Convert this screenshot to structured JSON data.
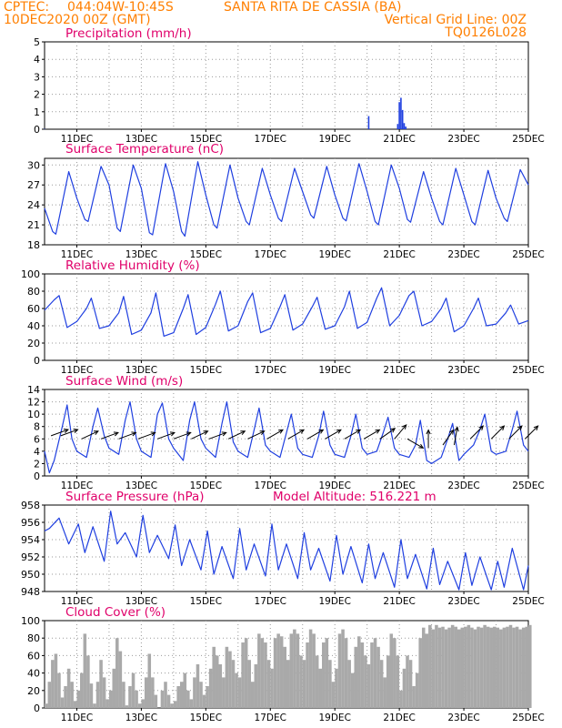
{
  "header": {
    "source": "CPTEC:",
    "coords": "044:04W-10:45S",
    "location": "SANTA RITA DE CASSIA (BA)",
    "datetime": "10DEC2020 00Z (GMT)",
    "grid_note": "Vertical Grid Line: 00Z",
    "model_id": "TQ0126L028"
  },
  "colors": {
    "header": "#ff7f00",
    "panel_title": "#e0006a",
    "line": "#1f3fe0",
    "bar": "#1f3fe0",
    "cloud": "#a9a9a9",
    "grid": "#9a9a9a",
    "arrow": "#000000"
  },
  "chart_data": [
    {
      "type": "bar",
      "title": "Precipitation (mm/h)",
      "x_ticks": [
        "11DEC",
        "13DEC",
        "15DEC",
        "17DEC",
        "19DEC",
        "21DEC",
        "23DEC",
        "25DEC"
      ],
      "y_ticks": [
        "0",
        "1",
        "2",
        "3",
        "4",
        "5"
      ],
      "ylim": [
        0,
        5
      ],
      "grid": true,
      "x": [
        10.0,
        20.05,
        20.95,
        21.0,
        21.05,
        21.1,
        21.15,
        21.2
      ],
      "values": [
        0.02,
        0.75,
        0.3,
        1.55,
        1.8,
        1.1,
        0.35,
        0.15
      ]
    },
    {
      "type": "line",
      "title": "Surface Temperature (nC)",
      "x_ticks": [
        "11DEC",
        "13DEC",
        "15DEC",
        "17DEC",
        "19DEC",
        "21DEC",
        "23DEC",
        "25DEC"
      ],
      "y_ticks": [
        "18",
        "21",
        "24",
        "27",
        "30"
      ],
      "ylim": [
        18,
        31
      ],
      "grid": true,
      "x": [
        10.0,
        10.25,
        10.35,
        10.75,
        11.0,
        11.25,
        11.35,
        11.75,
        12.0,
        12.25,
        12.35,
        12.75,
        13.0,
        13.25,
        13.35,
        13.75,
        14.0,
        14.25,
        14.35,
        14.75,
        15.0,
        15.25,
        15.35,
        15.75,
        16.0,
        16.25,
        16.35,
        16.75,
        17.0,
        17.25,
        17.35,
        17.75,
        18.0,
        18.25,
        18.35,
        18.75,
        19.0,
        19.25,
        19.35,
        19.75,
        20.0,
        20.25,
        20.35,
        20.75,
        21.0,
        21.25,
        21.35,
        21.75,
        22.0,
        22.25,
        22.35,
        22.75,
        23.0,
        23.25,
        23.35,
        23.75,
        24.0,
        24.25,
        24.35,
        24.75,
        25.0
      ],
      "values": [
        23.5,
        20.0,
        19.6,
        29.0,
        25.0,
        21.8,
        21.5,
        29.8,
        27.0,
        20.5,
        20.0,
        30.0,
        26.5,
        19.8,
        19.5,
        30.2,
        26.0,
        20.0,
        19.3,
        30.5,
        25.5,
        21.0,
        20.5,
        30.0,
        25.0,
        21.5,
        21.0,
        29.5,
        25.5,
        22.0,
        21.5,
        29.5,
        26.0,
        22.5,
        22.0,
        29.8,
        25.5,
        22.0,
        21.6,
        30.2,
        26.0,
        21.5,
        21.0,
        30.0,
        26.5,
        21.8,
        21.4,
        29.0,
        25.0,
        21.5,
        21.0,
        29.5,
        25.5,
        21.5,
        21.0,
        29.2,
        25.0,
        22.0,
        21.5,
        29.3,
        27.0
      ]
    },
    {
      "type": "line",
      "title": "Relative Humidity (%)",
      "x_ticks": [
        "11DEC",
        "13DEC",
        "15DEC",
        "17DEC",
        "19DEC",
        "21DEC",
        "23DEC",
        "25DEC"
      ],
      "y_ticks": [
        "0",
        "20",
        "40",
        "60",
        "80",
        "100"
      ],
      "ylim": [
        0,
        100
      ],
      "grid": true,
      "x": [
        10.0,
        10.3,
        10.45,
        10.7,
        11.0,
        11.3,
        11.45,
        11.7,
        12.0,
        12.3,
        12.45,
        12.7,
        13.0,
        13.3,
        13.45,
        13.7,
        14.0,
        14.3,
        14.45,
        14.7,
        15.0,
        15.3,
        15.45,
        15.7,
        16.0,
        16.3,
        16.45,
        16.7,
        17.0,
        17.3,
        17.45,
        17.7,
        18.0,
        18.3,
        18.45,
        18.7,
        19.0,
        19.3,
        19.45,
        19.7,
        20.0,
        20.3,
        20.45,
        20.7,
        21.0,
        21.3,
        21.45,
        21.7,
        22.0,
        22.3,
        22.45,
        22.7,
        23.0,
        23.3,
        23.45,
        23.7,
        24.0,
        24.3,
        24.45,
        24.7,
        25.0
      ],
      "values": [
        58,
        70,
        75,
        38,
        45,
        60,
        72,
        37,
        40,
        55,
        74,
        30,
        35,
        55,
        78,
        28,
        32,
        60,
        76,
        30,
        38,
        65,
        80,
        34,
        40,
        68,
        78,
        32,
        37,
        62,
        76,
        35,
        42,
        62,
        73,
        36,
        40,
        62,
        80,
        37,
        44,
        72,
        84,
        40,
        52,
        75,
        80,
        40,
        45,
        60,
        72,
        33,
        40,
        60,
        72,
        40,
        42,
        55,
        64,
        42,
        46
      ]
    },
    {
      "type": "line",
      "title": "Surface Wind (m/s)",
      "x_ticks": [
        "11DEC",
        "13DEC",
        "15DEC",
        "17DEC",
        "19DEC",
        "21DEC",
        "23DEC",
        "25DEC"
      ],
      "y_ticks": [
        "0",
        "2",
        "4",
        "6",
        "8",
        "10",
        "12",
        "14"
      ],
      "ylim": [
        0,
        14
      ],
      "grid": true,
      "x": [
        10.0,
        10.15,
        10.3,
        10.55,
        10.7,
        10.85,
        11.0,
        11.3,
        11.5,
        11.65,
        11.85,
        12.0,
        12.3,
        12.5,
        12.65,
        12.85,
        13.0,
        13.3,
        13.5,
        13.65,
        13.85,
        14.0,
        14.3,
        14.5,
        14.65,
        14.85,
        15.0,
        15.3,
        15.5,
        15.65,
        15.85,
        16.0,
        16.3,
        16.5,
        16.65,
        16.85,
        17.0,
        17.3,
        17.5,
        17.65,
        17.85,
        18.0,
        18.3,
        18.5,
        18.65,
        18.85,
        19.0,
        19.3,
        19.5,
        19.65,
        19.85,
        20.0,
        20.3,
        20.5,
        20.65,
        20.85,
        21.0,
        21.3,
        21.5,
        21.65,
        21.85,
        22.0,
        22.3,
        22.5,
        22.65,
        22.85,
        23.0,
        23.3,
        23.5,
        23.65,
        23.85,
        24.0,
        24.3,
        24.5,
        24.65,
        24.85,
        25.0
      ],
      "values": [
        4.0,
        0.5,
        2.5,
        8.0,
        11.5,
        6.0,
        4.0,
        3.0,
        8.0,
        11.0,
        6.5,
        4.5,
        3.5,
        9.0,
        12.0,
        6.0,
        4.0,
        3.0,
        10.0,
        11.8,
        6.0,
        4.5,
        2.5,
        9.0,
        12.0,
        6.0,
        4.5,
        3.0,
        8.5,
        12.0,
        5.5,
        4.0,
        3.0,
        7.5,
        11.0,
        5.0,
        4.0,
        3.0,
        7.0,
        10.0,
        4.5,
        3.5,
        3.0,
        6.5,
        10.5,
        5.0,
        3.5,
        3.0,
        6.5,
        10.0,
        4.5,
        3.5,
        4.0,
        7.0,
        9.5,
        4.5,
        3.5,
        3.0,
        5.0,
        9.0,
        2.5,
        2.0,
        3.0,
        6.0,
        8.5,
        2.5,
        3.5,
        5.0,
        7.5,
        10.0,
        4.0,
        3.5,
        4.0,
        7.5,
        10.5,
        5.0,
        4.0
      ],
      "wind_arrows": [
        {
          "x": 10.2,
          "dir": 250,
          "speed": 6.5
        },
        {
          "x": 10.5,
          "dir": 250,
          "speed": 6.5
        },
        {
          "x": 11.15,
          "dir": 245,
          "speed": 6.0
        },
        {
          "x": 11.75,
          "dir": 250,
          "speed": 6.0
        },
        {
          "x": 12.3,
          "dir": 250,
          "speed": 6.0
        },
        {
          "x": 12.9,
          "dir": 250,
          "speed": 6.0
        },
        {
          "x": 13.5,
          "dir": 250,
          "speed": 6.0
        },
        {
          "x": 14.0,
          "dir": 250,
          "speed": 6.0
        },
        {
          "x": 14.55,
          "dir": 245,
          "speed": 6.0
        },
        {
          "x": 15.1,
          "dir": 250,
          "speed": 6.0
        },
        {
          "x": 15.7,
          "dir": 245,
          "speed": 6.0
        },
        {
          "x": 16.3,
          "dir": 245,
          "speed": 6.0
        },
        {
          "x": 16.9,
          "dir": 240,
          "speed": 6.0
        },
        {
          "x": 17.55,
          "dir": 240,
          "speed": 6.0
        },
        {
          "x": 18.15,
          "dir": 240,
          "speed": 6.0
        },
        {
          "x": 18.7,
          "dir": 240,
          "speed": 6.0
        },
        {
          "x": 19.3,
          "dir": 240,
          "speed": 6.0
        },
        {
          "x": 19.9,
          "dir": 240,
          "speed": 6.0
        },
        {
          "x": 20.4,
          "dir": 235,
          "speed": 6.0
        },
        {
          "x": 20.85,
          "dir": 220,
          "speed": 6.0
        },
        {
          "x": 21.25,
          "dir": 300,
          "speed": 6.0
        },
        {
          "x": 21.9,
          "dir": 180,
          "speed": 4.5
        },
        {
          "x": 22.35,
          "dir": 215,
          "speed": 5.0
        },
        {
          "x": 22.7,
          "dir": 190,
          "speed": 5.0
        },
        {
          "x": 23.2,
          "dir": 225,
          "speed": 6.0
        },
        {
          "x": 23.85,
          "dir": 225,
          "speed": 6.0
        },
        {
          "x": 24.4,
          "dir": 225,
          "speed": 6.0
        },
        {
          "x": 24.9,
          "dir": 225,
          "speed": 6.0
        }
      ]
    },
    {
      "type": "line",
      "title": "Surface Pressure (hPa)",
      "annotation": "Model Altitude: 516.221 m",
      "x_ticks": [
        "11DEC",
        "13DEC",
        "15DEC",
        "17DEC",
        "19DEC",
        "21DEC",
        "23DEC",
        "25DEC"
      ],
      "y_ticks": [
        "948",
        "950",
        "952",
        "954",
        "956",
        "958"
      ],
      "ylim": [
        948,
        958
      ],
      "grid": true,
      "x": [
        10.0,
        10.15,
        10.45,
        10.75,
        11.05,
        11.25,
        11.5,
        11.85,
        12.05,
        12.25,
        12.5,
        12.85,
        13.05,
        13.25,
        13.5,
        13.85,
        14.05,
        14.25,
        14.5,
        14.85,
        15.05,
        15.25,
        15.5,
        15.85,
        16.05,
        16.25,
        16.5,
        16.85,
        17.05,
        17.25,
        17.5,
        17.85,
        18.05,
        18.25,
        18.5,
        18.85,
        19.05,
        19.25,
        19.5,
        19.85,
        20.05,
        20.25,
        20.5,
        20.85,
        21.05,
        21.25,
        21.5,
        21.85,
        22.05,
        22.25,
        22.5,
        22.85,
        23.05,
        23.25,
        23.5,
        23.85,
        24.05,
        24.25,
        24.5,
        24.85,
        25.0
      ],
      "values": [
        955.0,
        955.3,
        956.5,
        953.5,
        955.8,
        952.5,
        955.5,
        951.5,
        957.3,
        953.5,
        954.8,
        952.0,
        956.8,
        952.5,
        954.5,
        951.8,
        955.7,
        951.0,
        954.0,
        950.5,
        955.0,
        950.0,
        953.2,
        949.5,
        955.3,
        950.5,
        953.5,
        949.8,
        955.8,
        950.5,
        953.5,
        949.5,
        954.8,
        950.5,
        953.0,
        949.2,
        954.5,
        950.0,
        953.2,
        949.0,
        953.5,
        949.5,
        952.5,
        948.5,
        954.0,
        949.5,
        952.3,
        948.3,
        953.0,
        948.8,
        951.5,
        948.2,
        952.5,
        948.7,
        952.0,
        948.2,
        951.5,
        948.5,
        953.0,
        948.2,
        951.0
      ]
    },
    {
      "type": "bar",
      "title": "Cloud Cover (%)",
      "x_ticks": [
        "11DEC",
        "13DEC",
        "15DEC",
        "17DEC",
        "19DEC",
        "21DEC",
        "23DEC",
        "25DEC"
      ],
      "y_ticks": [
        "0",
        "20",
        "40",
        "60",
        "80",
        "100"
      ],
      "ylim": [
        0,
        100
      ],
      "grid": true,
      "x": [
        10.0,
        10.1,
        10.2,
        10.3,
        10.4,
        10.5,
        10.6,
        10.7,
        10.8,
        10.9,
        11.0,
        11.1,
        11.2,
        11.3,
        11.4,
        11.5,
        11.6,
        11.7,
        11.8,
        11.9,
        12.0,
        12.1,
        12.2,
        12.3,
        12.4,
        12.5,
        12.6,
        12.7,
        12.8,
        12.9,
        13.0,
        13.1,
        13.2,
        13.3,
        13.4,
        13.5,
        13.6,
        13.7,
        13.8,
        13.9,
        14.0,
        14.1,
        14.2,
        14.3,
        14.4,
        14.5,
        14.6,
        14.7,
        14.8,
        14.9,
        15.0,
        15.1,
        15.2,
        15.3,
        15.4,
        15.5,
        15.6,
        15.7,
        15.8,
        15.9,
        16.0,
        16.1,
        16.2,
        16.3,
        16.4,
        16.5,
        16.6,
        16.7,
        16.8,
        16.9,
        17.0,
        17.1,
        17.2,
        17.3,
        17.4,
        17.5,
        17.6,
        17.7,
        17.8,
        17.9,
        18.0,
        18.1,
        18.2,
        18.3,
        18.4,
        18.5,
        18.6,
        18.7,
        18.8,
        18.9,
        19.0,
        19.1,
        19.2,
        19.3,
        19.4,
        19.5,
        19.6,
        19.7,
        19.8,
        19.9,
        20.0,
        20.1,
        20.2,
        20.3,
        20.4,
        20.5,
        20.6,
        20.7,
        20.8,
        20.9,
        21.0,
        21.1,
        21.2,
        21.3,
        21.4,
        21.5,
        21.6,
        21.7,
        21.8,
        21.9,
        22.0,
        22.1,
        22.2,
        22.3,
        22.4,
        22.5,
        22.6,
        22.7,
        22.8,
        22.9,
        23.0,
        23.1,
        23.2,
        23.3,
        23.4,
        23.5,
        23.6,
        23.7,
        23.8,
        23.9,
        24.0,
        24.1,
        24.2,
        24.3,
        24.4,
        24.5,
        24.6,
        24.7,
        24.8,
        24.9,
        25.0
      ],
      "values": [
        5,
        30,
        55,
        62,
        40,
        12,
        25,
        45,
        30,
        8,
        20,
        40,
        85,
        60,
        28,
        5,
        30,
        55,
        35,
        10,
        20,
        45,
        80,
        65,
        30,
        3,
        25,
        40,
        20,
        5,
        10,
        35,
        62,
        35,
        15,
        0,
        20,
        30,
        15,
        5,
        8,
        25,
        30,
        40,
        20,
        10,
        35,
        50,
        30,
        15,
        25,
        45,
        70,
        60,
        50,
        35,
        70,
        65,
        55,
        40,
        35,
        75,
        80,
        55,
        30,
        50,
        85,
        80,
        75,
        55,
        45,
        80,
        85,
        82,
        70,
        55,
        85,
        90,
        85,
        60,
        55,
        75,
        90,
        85,
        60,
        45,
        75,
        80,
        55,
        30,
        45,
        85,
        90,
        80,
        55,
        40,
        70,
        82,
        75,
        60,
        50,
        75,
        80,
        70,
        55,
        35,
        60,
        85,
        80,
        60,
        20,
        45,
        60,
        55,
        25,
        40,
        80,
        92,
        85,
        95,
        90,
        95,
        92,
        93,
        90,
        92,
        95,
        93,
        90,
        92,
        93,
        95,
        92,
        90,
        93,
        92,
        95,
        93,
        92,
        93,
        92,
        90,
        92,
        93,
        95,
        92,
        93,
        90,
        92,
        93,
        95
      ]
    }
  ]
}
